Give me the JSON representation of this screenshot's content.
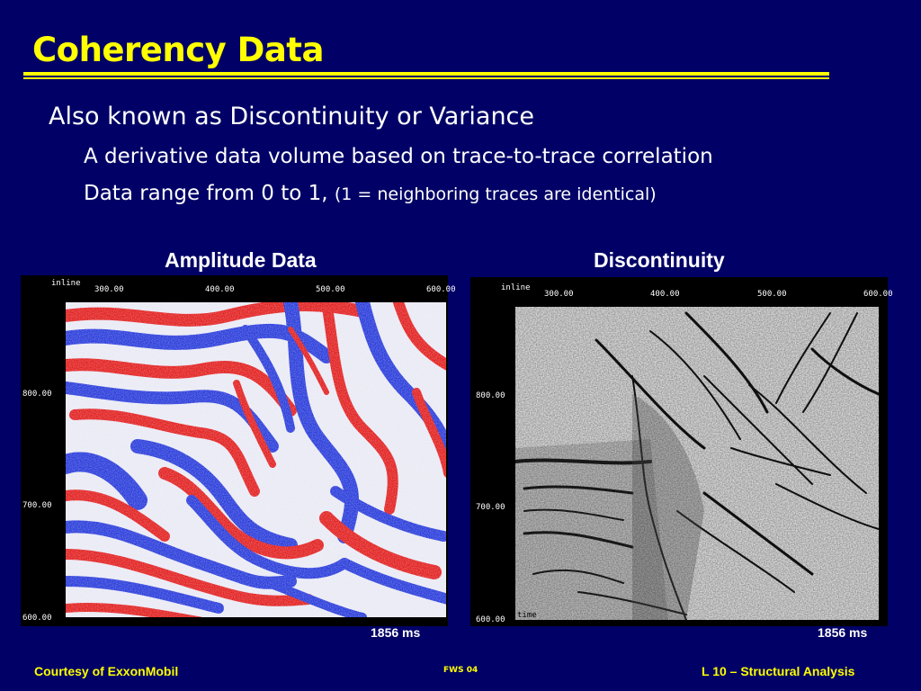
{
  "slide": {
    "title": "Coherency Data",
    "bullet1": "Also known as Discontinuity or Variance",
    "bullet2": "A derivative data volume based on trace-to-trace correlation",
    "bullet3_main": "Data range from 0 to 1,",
    "bullet3_note": "(1 = neighboring traces are identical)"
  },
  "panels": {
    "left": {
      "caption": "Amplitude Data",
      "axis_label": "inline",
      "x_ticks": [
        "300.00",
        "400.00",
        "500.00",
        "600.00"
      ],
      "y_ticks": [
        "800.00",
        "700.00",
        "600.00"
      ],
      "time_label": "1856 ms"
    },
    "right": {
      "caption": "Discontinuity",
      "axis_label": "inline",
      "x_ticks": [
        "300.00",
        "400.00",
        "500.00",
        "600.00"
      ],
      "y_ticks": [
        "800.00",
        "700.00",
        "600.00"
      ],
      "corner_label": "time",
      "time_label": "1856 ms"
    }
  },
  "footer": {
    "left": "Courtesy of ExxonMobil",
    "center": "FWS 04",
    "right": "L 10 – Structural Analysis"
  },
  "colors": {
    "background": "#000066",
    "title": "#ffff00",
    "text": "#ffffff",
    "seismic_positive": "#e01010",
    "seismic_negative": "#1a2ed8"
  }
}
